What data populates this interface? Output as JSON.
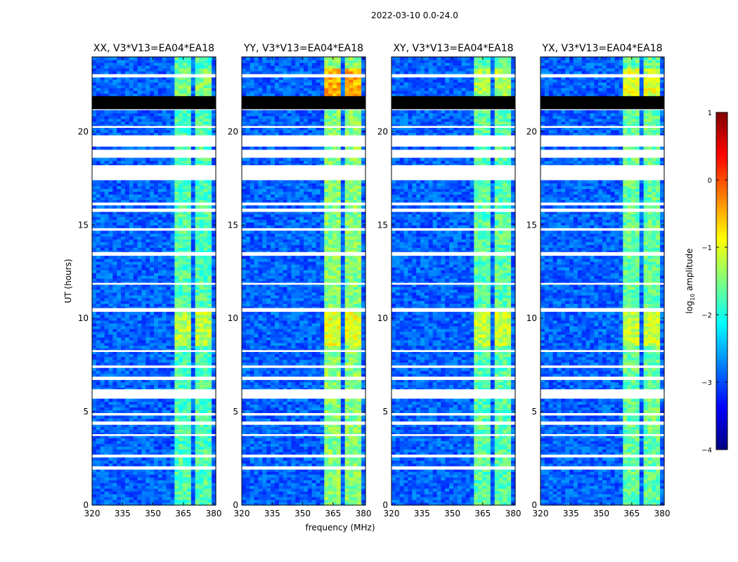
{
  "figure": {
    "suptitle": "2022-03-10 0.0-24.0"
  },
  "chart_data": {
    "type": "heatmap",
    "xlabel": "frequency (MHz)",
    "ylabel": "UT (hours)",
    "xlim": [
      320,
      381
    ],
    "ylim": [
      0,
      24
    ],
    "x_ticks": [
      320,
      335,
      350,
      365,
      380
    ],
    "y_ticks": [
      0,
      5,
      10,
      15,
      20
    ],
    "panels": [
      {
        "title": "XX, V3*V13=EA04*EA18",
        "signal_boost": 0.0
      },
      {
        "title": "YY, V3*V13=EA04*EA18",
        "signal_boost": 0.45
      },
      {
        "title": "XY, V3*V13=EA04*EA18",
        "signal_boost": 0.1
      },
      {
        "title": "YX, V3*V13=EA04*EA18",
        "signal_boost": 0.2
      }
    ],
    "signal_channels_mhz": [
      [
        360.5,
        364.5
      ],
      [
        365.5,
        369.5
      ],
      [
        370.5,
        374.5
      ],
      [
        375.5,
        379.5
      ]
    ],
    "flagged_white_ut": [
      [
        17.4,
        18.2
      ],
      [
        18.6,
        19.0
      ],
      [
        19.2,
        19.8
      ],
      [
        10.4,
        10.55
      ],
      [
        5.7,
        6.2
      ],
      [
        13.4,
        13.55
      ],
      [
        1.9,
        2.05
      ],
      [
        4.3,
        4.45
      ],
      [
        8.2,
        8.3
      ],
      [
        15.7,
        15.85
      ],
      [
        22.9,
        23.05
      ],
      [
        7.35,
        7.45
      ],
      [
        2.6,
        2.7
      ],
      [
        4.8,
        4.9
      ],
      [
        11.8,
        11.9
      ],
      [
        6.7,
        6.85
      ],
      [
        20.2,
        20.3
      ],
      [
        16.1,
        16.2
      ],
      [
        14.7,
        14.8
      ],
      [
        3.7,
        3.8
      ]
    ],
    "flagged_black_ut": [
      [
        21.2,
        21.9
      ]
    ],
    "colorbar": {
      "label": "log10 amplitude",
      "label_main": "log",
      "label_sub": "10",
      "label_tail": " amplitude",
      "range": [
        -4,
        1
      ],
      "ticks": [
        "1",
        "0",
        "−1",
        "−2",
        "−3",
        "−4"
      ],
      "colors": [
        "#00007f",
        "#0000ff",
        "#007fff",
        "#00ffff",
        "#7fff7f",
        "#ffff00",
        "#ff7f00",
        "#ff0000",
        "#7f0000"
      ]
    }
  }
}
